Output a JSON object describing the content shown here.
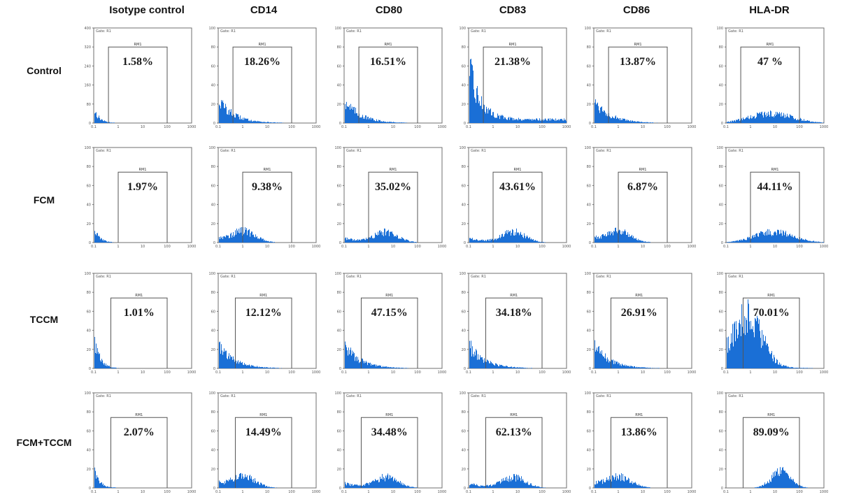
{
  "columns": [
    "Isotype control",
    "CD14",
    "CD80",
    "CD83",
    "CD86",
    "HLA-DR"
  ],
  "rows": [
    "Control",
    "FCM",
    "TCCM",
    "FCM+TCCM"
  ],
  "colors": {
    "histogram": "#1a6fd6",
    "frame": "#6f6f6f",
    "gate": "#555555",
    "percent": "#1a1a1a"
  },
  "chart_data": {
    "type": "histogram-grid",
    "gate_label": "Gate: R1",
    "marker_label": "RM1",
    "x_ticks": [
      "0.1",
      "1",
      "10",
      "100",
      "1000"
    ],
    "panels": [
      {
        "row": "Control",
        "column": "Isotype control",
        "percent": "1.58%",
        "y_ticks": [
          "400",
          "320",
          "240",
          "160",
          "80",
          "0"
        ],
        "gate_range": [
          0.4,
          100
        ]
      },
      {
        "row": "Control",
        "column": "CD14",
        "percent": "18.26%",
        "y_ticks": [
          "100",
          "80",
          "60",
          "40",
          "20",
          "0"
        ],
        "gate_range": [
          0.4,
          100
        ]
      },
      {
        "row": "Control",
        "column": "CD80",
        "percent": "16.51%",
        "y_ticks": [
          "100",
          "80",
          "60",
          "40",
          "20",
          "0"
        ],
        "gate_range": [
          0.4,
          100
        ]
      },
      {
        "row": "Control",
        "column": "CD83",
        "percent": "21.38%",
        "y_ticks": [
          "100",
          "80",
          "60",
          "40",
          "20",
          "0"
        ],
        "gate_range": [
          0.4,
          100
        ]
      },
      {
        "row": "Control",
        "column": "CD86",
        "percent": "13.87%",
        "y_ticks": [
          "100",
          "80",
          "60",
          "40",
          "20",
          "0"
        ],
        "gate_range": [
          0.4,
          100
        ]
      },
      {
        "row": "Control",
        "column": "HLA-DR",
        "percent": "47 %",
        "y_ticks": [
          "100",
          "80",
          "60",
          "40",
          "20",
          "0"
        ],
        "gate_range": [
          0.4,
          100
        ]
      },
      {
        "row": "FCM",
        "column": "Isotype control",
        "percent": "1.97%",
        "y_ticks": [
          "100",
          "80",
          "60",
          "40",
          "20",
          "0"
        ],
        "gate_range": [
          1,
          100
        ]
      },
      {
        "row": "FCM",
        "column": "CD14",
        "percent": "9.38%",
        "y_ticks": [
          "100",
          "80",
          "60",
          "40",
          "20",
          "0"
        ],
        "gate_range": [
          1,
          100
        ]
      },
      {
        "row": "FCM",
        "column": "CD80",
        "percent": "35.02%",
        "y_ticks": [
          "100",
          "80",
          "60",
          "40",
          "20",
          "0"
        ],
        "gate_range": [
          1,
          100
        ]
      },
      {
        "row": "FCM",
        "column": "CD83",
        "percent": "43.61%",
        "y_ticks": [
          "100",
          "80",
          "60",
          "40",
          "20",
          "0"
        ],
        "gate_range": [
          1,
          100
        ]
      },
      {
        "row": "FCM",
        "column": "CD86",
        "percent": "6.87%",
        "y_ticks": [
          "100",
          "80",
          "60",
          "40",
          "20",
          "0"
        ],
        "gate_range": [
          1,
          100
        ]
      },
      {
        "row": "FCM",
        "column": "HLA-DR",
        "percent": "44.11%",
        "y_ticks": [
          "100",
          "80",
          "60",
          "40",
          "20",
          "0"
        ],
        "gate_range": [
          1,
          100
        ]
      },
      {
        "row": "TCCM",
        "column": "Isotype control",
        "percent": "1.01%",
        "y_ticks": [
          "100",
          "80",
          "60",
          "40",
          "20",
          "0"
        ],
        "gate_range": [
          0.5,
          100
        ]
      },
      {
        "row": "TCCM",
        "column": "CD14",
        "percent": "12.12%",
        "y_ticks": [
          "100",
          "80",
          "60",
          "40",
          "20",
          "0"
        ],
        "gate_range": [
          0.5,
          100
        ]
      },
      {
        "row": "TCCM",
        "column": "CD80",
        "percent": "47.15%",
        "y_ticks": [
          "100",
          "80",
          "60",
          "40",
          "20",
          "0"
        ],
        "gate_range": [
          0.5,
          100
        ]
      },
      {
        "row": "TCCM",
        "column": "CD83",
        "percent": "34.18%",
        "y_ticks": [
          "100",
          "80",
          "60",
          "40",
          "20",
          "0"
        ],
        "gate_range": [
          0.5,
          100
        ]
      },
      {
        "row": "TCCM",
        "column": "CD86",
        "percent": "26.91%",
        "y_ticks": [
          "100",
          "80",
          "60",
          "40",
          "20",
          "0"
        ],
        "gate_range": [
          0.5,
          100
        ]
      },
      {
        "row": "TCCM",
        "column": "HLA-DR",
        "percent": "70.01%",
        "y_ticks": [
          "100",
          "80",
          "60",
          "40",
          "20",
          "0"
        ],
        "gate_range": [
          0.5,
          100
        ]
      },
      {
        "row": "FCM+TCCM",
        "column": "Isotype control",
        "percent": "2.07%",
        "y_ticks": [
          "100",
          "80",
          "60",
          "40",
          "20",
          "0"
        ],
        "gate_range": [
          0.5,
          100
        ]
      },
      {
        "row": "FCM+TCCM",
        "column": "CD14",
        "percent": "14.49%",
        "y_ticks": [
          "100",
          "80",
          "60",
          "40",
          "20",
          "0"
        ],
        "gate_range": [
          0.5,
          100
        ]
      },
      {
        "row": "FCM+TCCM",
        "column": "CD80",
        "percent": "34.48%",
        "y_ticks": [
          "100",
          "80",
          "60",
          "40",
          "20",
          "0"
        ],
        "gate_range": [
          0.5,
          100
        ]
      },
      {
        "row": "FCM+TCCM",
        "column": "CD83",
        "percent": "62.13%",
        "y_ticks": [
          "100",
          "80",
          "60",
          "40",
          "20",
          "0"
        ],
        "gate_range": [
          0.5,
          100
        ]
      },
      {
        "row": "FCM+TCCM",
        "column": "CD86",
        "percent": "13.86%",
        "y_ticks": [
          "100",
          "80",
          "60",
          "40",
          "20",
          "0"
        ],
        "gate_range": [
          0.5,
          100
        ]
      },
      {
        "row": "FCM+TCCM",
        "column": "HLA-DR",
        "percent": "89.09%",
        "y_ticks": [
          "100",
          "80",
          "60",
          "40",
          "20",
          "0"
        ],
        "gate_range": [
          0.5,
          100
        ]
      }
    ]
  }
}
